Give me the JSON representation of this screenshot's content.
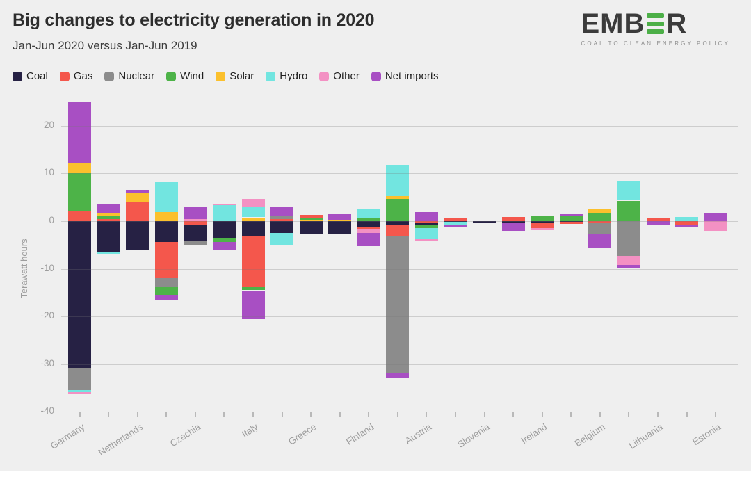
{
  "header": {
    "title": "Big changes to electricity generation in 2020",
    "subtitle": "Jan-Jun 2020 versus Jan-Jun 2019"
  },
  "logo": {
    "prefix": "EMB",
    "suffix": "R",
    "tagline": "COAL TO CLEAN ENERGY POLICY",
    "accent_color": "#4caf47"
  },
  "chart_data": {
    "type": "bar",
    "stacked": true,
    "title": "Big changes to electricity generation in 2020",
    "subtitle": "Jan-Jun 2020 versus Jan-Jun 2019",
    "ylabel": "Terawatt hours",
    "unit": "TWh",
    "ylim": [
      -40,
      26
    ],
    "y_ticks": [
      20,
      10,
      0,
      -10,
      -20,
      -30,
      -40
    ],
    "grid": true,
    "legend_position": "top",
    "x_labels_shown_every": 2,
    "fuels": [
      {
        "name": "Coal",
        "color": "#262144"
      },
      {
        "name": "Gas",
        "color": "#f4574c"
      },
      {
        "name": "Nuclear",
        "color": "#8c8c8c"
      },
      {
        "name": "Wind",
        "color": "#4db348"
      },
      {
        "name": "Solar",
        "color": "#fbc02d"
      },
      {
        "name": "Hydro",
        "color": "#72e5e0"
      },
      {
        "name": "Other",
        "color": "#f391c3"
      },
      {
        "name": "Net imports",
        "color": "#a84fc3"
      }
    ],
    "bars": [
      {
        "label": "Germany",
        "up": [
          [
            "Gas",
            2.1
          ],
          [
            "Wind",
            7.9
          ],
          [
            "Solar",
            2.3
          ],
          [
            "Net imports",
            12.8
          ]
        ],
        "down": [
          [
            "Coal",
            -30.7
          ],
          [
            "Nuclear",
            -4.7
          ],
          [
            "Hydro",
            -0.5
          ],
          [
            "Other",
            -0.4
          ]
        ]
      },
      {
        "label": "",
        "up": [
          [
            "Gas",
            0.4
          ],
          [
            "Wind",
            0.8
          ],
          [
            "Solar",
            0.6
          ],
          [
            "Net imports",
            1.9
          ]
        ],
        "down": [
          [
            "Coal",
            -6.4
          ],
          [
            "Hydro",
            -0.5
          ]
        ]
      },
      {
        "label": "Netherlands",
        "up": [
          [
            "Gas",
            4.1
          ],
          [
            "Solar",
            1.8
          ],
          [
            "Net imports",
            0.7
          ]
        ],
        "down": [
          [
            "Coal",
            -5.9
          ]
        ]
      },
      {
        "label": "",
        "up": [
          [
            "Solar",
            1.9
          ],
          [
            "Hydro",
            6.3
          ]
        ],
        "down": [
          [
            "Coal",
            -4.4
          ],
          [
            "Gas",
            -7.6
          ],
          [
            "Nuclear",
            -1.9
          ],
          [
            "Wind",
            -1.6
          ],
          [
            "Net imports",
            -1.1
          ]
        ]
      },
      {
        "label": "Czechia",
        "up": [
          [
            "Other",
            0.4
          ],
          [
            "Net imports",
            2.6
          ]
        ],
        "down": [
          [
            "Gas",
            -0.7
          ],
          [
            "Coal",
            -3.4
          ],
          [
            "Nuclear",
            -0.9
          ]
        ]
      },
      {
        "label": "",
        "up": [
          [
            "Hydro",
            3.4
          ],
          [
            "Other",
            0.2
          ]
        ],
        "down": [
          [
            "Coal",
            -3.5
          ],
          [
            "Wind",
            -0.9
          ],
          [
            "Net imports",
            -1.6
          ]
        ]
      },
      {
        "label": "Italy",
        "up": [
          [
            "Solar",
            0.8
          ],
          [
            "Hydro",
            2.1
          ],
          [
            "Other",
            1.7
          ]
        ],
        "down": [
          [
            "Coal",
            -3.2
          ],
          [
            "Gas",
            -10.7
          ],
          [
            "Wind",
            -0.6
          ],
          [
            "Net imports",
            -6.0
          ]
        ]
      },
      {
        "label": "",
        "up": [
          [
            "Gas",
            0.5
          ],
          [
            "Nuclear",
            0.6
          ],
          [
            "Net imports",
            1.9
          ]
        ],
        "down": [
          [
            "Coal",
            -2.4
          ],
          [
            "Hydro",
            -2.5
          ]
        ]
      },
      {
        "label": "Greece",
        "up": [
          [
            "Solar",
            0.3
          ],
          [
            "Wind",
            0.4
          ],
          [
            "Gas",
            0.6
          ]
        ],
        "down": [
          [
            "Coal",
            -2.8
          ]
        ]
      },
      {
        "label": "",
        "up": [
          [
            "Solar",
            0.2
          ],
          [
            "Net imports",
            1.3
          ]
        ],
        "down": [
          [
            "Coal",
            -2.7
          ]
        ]
      },
      {
        "label": "Finland",
        "up": [
          [
            "Wind",
            0.6
          ],
          [
            "Hydro",
            1.9
          ]
        ],
        "down": [
          [
            "Coal",
            -1.2
          ],
          [
            "Gas",
            -0.4
          ],
          [
            "Other",
            -0.8
          ],
          [
            "Net imports",
            -2.9
          ]
        ]
      },
      {
        "label": "",
        "up": [
          [
            "Wind",
            4.6
          ],
          [
            "Solar",
            0.6
          ],
          [
            "Hydro",
            6.5
          ]
        ],
        "down": [
          [
            "Coal",
            -0.9
          ],
          [
            "Gas",
            -2.1
          ],
          [
            "Nuclear",
            -28.8
          ],
          [
            "Net imports",
            -1.2
          ]
        ]
      },
      {
        "label": "Austria",
        "up": [
          [
            "Net imports",
            1.9
          ]
        ],
        "down": [
          [
            "Gas",
            -0.4
          ],
          [
            "Coal",
            -0.5
          ],
          [
            "Wind",
            -0.6
          ],
          [
            "Hydro",
            -2.2
          ],
          [
            "Other",
            -0.4
          ]
        ]
      },
      {
        "label": "",
        "up": [
          [
            "Gas",
            0.6
          ]
        ],
        "down": [
          [
            "Coal",
            -0.2
          ],
          [
            "Hydro",
            -0.5
          ],
          [
            "Net imports",
            -0.6
          ]
        ]
      },
      {
        "label": "Slovenia",
        "up": [],
        "down": [
          [
            "Coal",
            -0.5
          ]
        ]
      },
      {
        "label": "",
        "up": [
          [
            "Gas",
            0.9
          ]
        ],
        "down": [
          [
            "Coal",
            -0.5
          ],
          [
            "Net imports",
            -1.6
          ]
        ]
      },
      {
        "label": "Ireland",
        "up": [
          [
            "Wind",
            1.2
          ]
        ],
        "down": [
          [
            "Coal",
            -0.3
          ],
          [
            "Gas",
            -1.2
          ],
          [
            "Other",
            -0.4
          ]
        ]
      },
      {
        "label": "",
        "up": [
          [
            "Wind",
            1.1
          ],
          [
            "Net imports",
            0.3
          ]
        ],
        "down": [
          [
            "Coal",
            -0.2
          ],
          [
            "Gas",
            -0.4
          ]
        ]
      },
      {
        "label": "Belgium",
        "up": [
          [
            "Wind",
            1.7
          ],
          [
            "Solar",
            0.8
          ]
        ],
        "down": [
          [
            "Gas",
            -0.5
          ],
          [
            "Nuclear",
            -2.2
          ],
          [
            "Net imports",
            -2.8
          ]
        ]
      },
      {
        "label": "",
        "up": [
          [
            "Wind",
            4.3
          ],
          [
            "Hydro",
            4.1
          ]
        ],
        "down": [
          [
            "Nuclear",
            -7.3
          ],
          [
            "Other",
            -1.9
          ],
          [
            "Net imports",
            -0.6
          ]
        ]
      },
      {
        "label": "Lithuania",
        "up": [
          [
            "Gas",
            0.7
          ]
        ],
        "down": [
          [
            "Net imports",
            -0.9
          ]
        ]
      },
      {
        "label": "",
        "up": [
          [
            "Hydro",
            0.9
          ]
        ],
        "down": [
          [
            "Gas",
            -0.8
          ],
          [
            "Net imports",
            -0.4
          ]
        ]
      },
      {
        "label": "Estonia",
        "up": [
          [
            "Net imports",
            1.8
          ]
        ],
        "down": [
          [
            "Other",
            -2.0
          ]
        ]
      }
    ]
  }
}
